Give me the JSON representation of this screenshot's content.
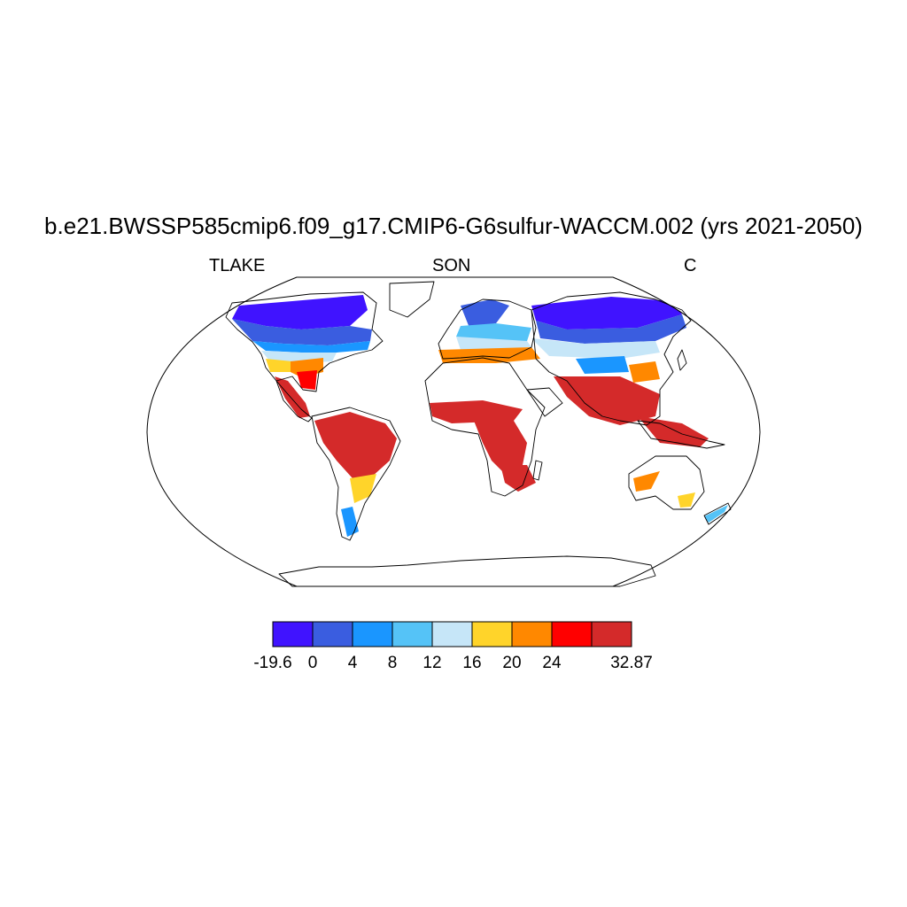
{
  "title": "b.e21.BWSSP585cmip6.f09_g17.CMIP6-G6sulfur-WACCM.002 (yrs 2021-2050)",
  "subtitle_left": "TLAKE",
  "subtitle_center": "SON",
  "subtitle_right": "C",
  "colorbar": {
    "colors": [
      "#4013ff",
      "#3a5de0",
      "#1a96ff",
      "#55c3f7",
      "#c6e6f8",
      "#ffd42a",
      "#ff8800",
      "#ff0000",
      "#d42a2a"
    ],
    "labels": [
      "-19.6",
      "0",
      "4",
      "8",
      "12",
      "16",
      "20",
      "24",
      "32.87"
    ]
  }
}
